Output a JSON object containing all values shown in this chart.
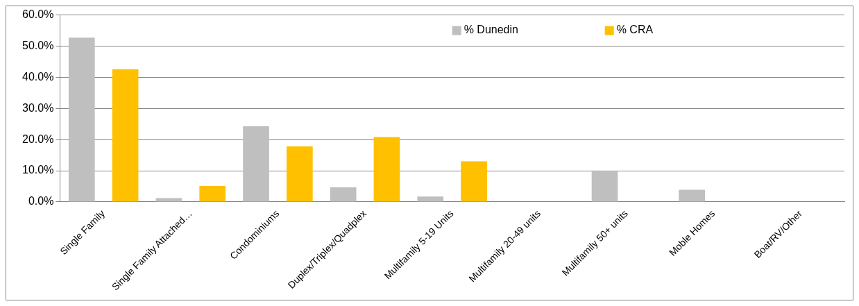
{
  "chart_data": {
    "type": "bar",
    "categories": [
      "Single Family",
      "Single Family Attached…",
      "Condominiums",
      "Duplex/Triplex/Quadplex",
      "Multifamily 5-19 Units",
      "Multifamily 20-49 units",
      "Multifamily 50+ units",
      "Moble Homes",
      "Boat/RV/Other"
    ],
    "series": [
      {
        "name": "% Dunedin",
        "color": "#bfbfbf",
        "values": [
          52.7,
          1.2,
          24.3,
          4.7,
          1.7,
          0,
          10.1,
          3.9,
          0
        ]
      },
      {
        "name": "% CRA",
        "color": "#ffc000",
        "values": [
          42.6,
          5.1,
          17.8,
          20.8,
          13.0,
          0,
          0,
          0,
          0
        ]
      }
    ],
    "ylim": [
      0,
      60
    ],
    "yticks": [
      {
        "value": 0,
        "label": "0.0%"
      },
      {
        "value": 10,
        "label": "10.0%"
      },
      {
        "value": 20,
        "label": "20.0%"
      },
      {
        "value": 30,
        "label": "30.0%"
      },
      {
        "value": 40,
        "label": "40.0%"
      },
      {
        "value": 50,
        "label": "50.0%"
      },
      {
        "value": 60,
        "label": "60.0%"
      }
    ],
    "grid": "y",
    "legend": "top"
  }
}
